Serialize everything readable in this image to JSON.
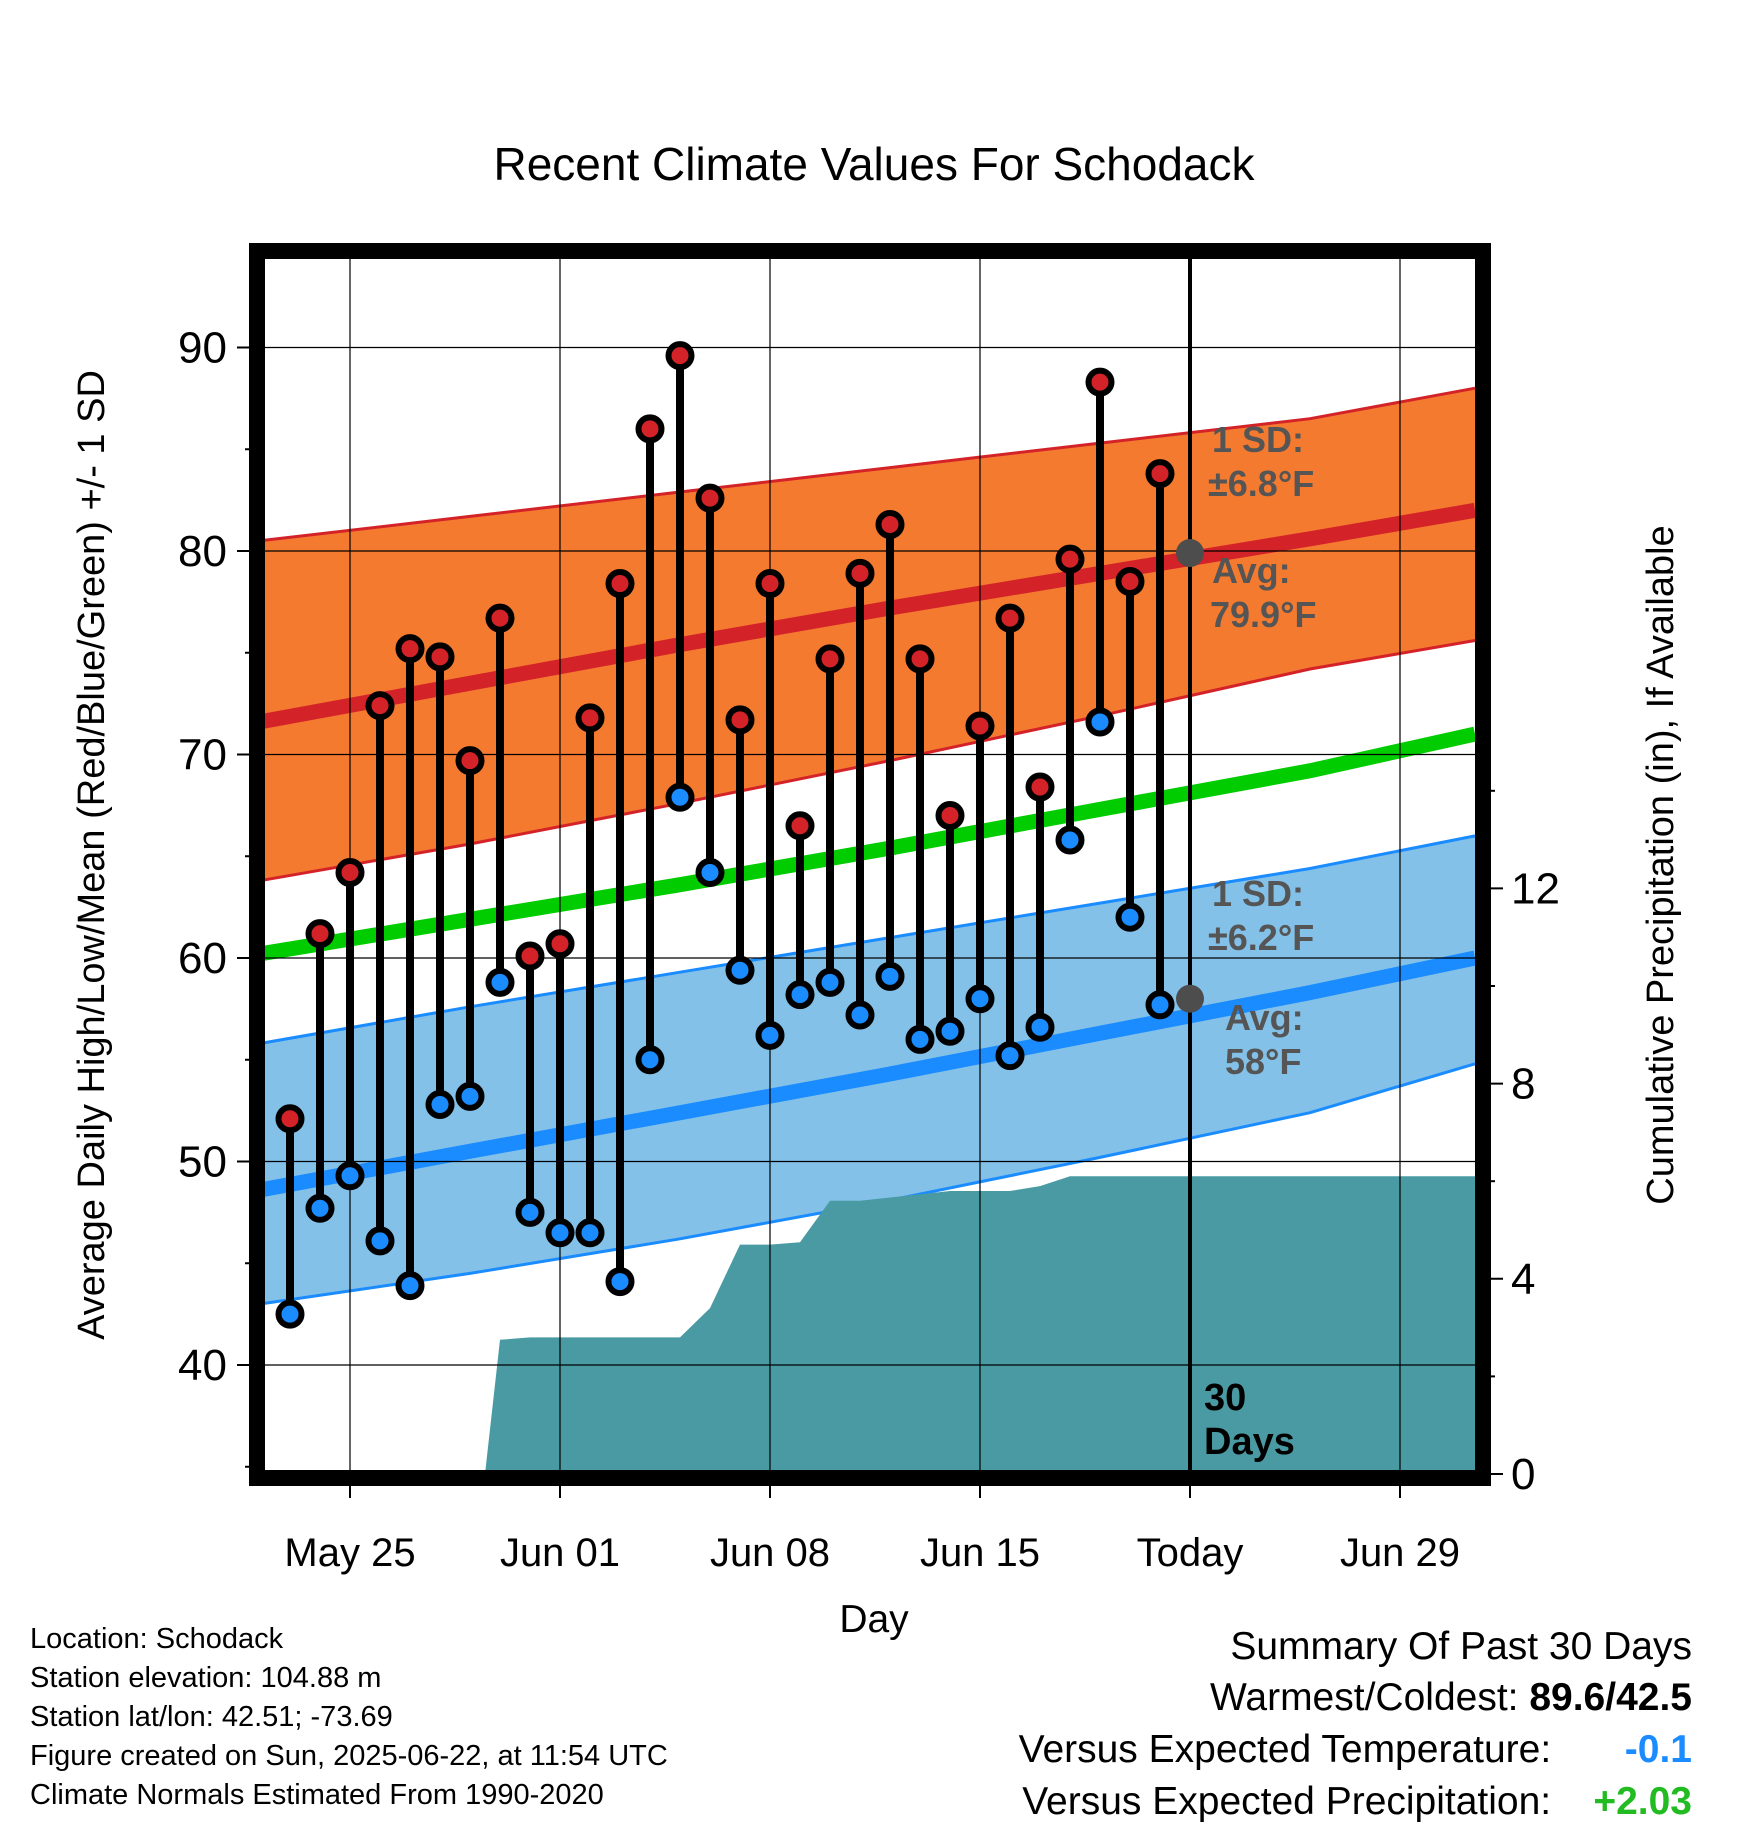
{
  "chart_data": {
    "type": "line",
    "title": "Recent Climate Values For Schodack",
    "xlabel": "Day",
    "ylabel": "Average Daily High/Low/Mean (Red/Blue/Green) +/- 1 SD",
    "y2label": "Cumulative Precipitation (in), If Available",
    "x_ticks": [
      {
        "day": 0,
        "label": "May 25"
      },
      {
        "day": 7,
        "label": "Jun 01"
      },
      {
        "day": 14,
        "label": "Jun 08"
      },
      {
        "day": 21,
        "label": "Jun 15"
      },
      {
        "day": 28,
        "label": "Today"
      },
      {
        "day": 35,
        "label": "Jun 29"
      }
    ],
    "xlim_days_from_may25": [
      -3.25,
      38.0
    ],
    "ylim": [
      34.5,
      95.0
    ],
    "y_ticks": [
      40,
      50,
      60,
      70,
      80,
      90
    ],
    "y2lim": [
      0,
      15.8
    ],
    "y2_ticks": [
      0,
      4,
      8,
      12
    ],
    "grid": true,
    "today_marker": {
      "label_line1": "30",
      "label_line2": "Days"
    },
    "days": [
      "May 23",
      "May 24",
      "May 25",
      "May 26",
      "May 27",
      "May 28",
      "May 29",
      "May 30",
      "May 31",
      "Jun 01",
      "Jun 02",
      "Jun 03",
      "Jun 04",
      "Jun 05",
      "Jun 06",
      "Jun 07",
      "Jun 08",
      "Jun 09",
      "Jun 10",
      "Jun 11",
      "Jun 12",
      "Jun 13",
      "Jun 14",
      "Jun 15",
      "Jun 16",
      "Jun 17",
      "Jun 18",
      "Jun 19",
      "Jun 20",
      "Jun 21"
    ],
    "highs": [
      52.1,
      61.2,
      64.2,
      72.4,
      75.2,
      74.8,
      69.7,
      76.7,
      60.1,
      60.7,
      71.8,
      78.4,
      86.0,
      89.6,
      82.6,
      71.7,
      78.4,
      66.5,
      74.7,
      78.9,
      81.3,
      74.7,
      67.0,
      71.4,
      76.7,
      68.4,
      79.6,
      88.3,
      78.5,
      83.8
    ],
    "lows": [
      42.5,
      47.7,
      49.3,
      46.1,
      43.9,
      52.8,
      53.2,
      58.8,
      47.5,
      46.5,
      46.5,
      44.1,
      55.0,
      67.9,
      64.2,
      59.4,
      56.2,
      58.2,
      58.8,
      57.2,
      59.1,
      56.0,
      56.4,
      58.0,
      55.2,
      56.6,
      65.8,
      71.6,
      62.0,
      57.7
    ],
    "normals": {
      "x_days": [
        -3,
        4,
        11,
        18,
        25,
        32,
        37.5
      ],
      "avg_high": [
        71.6,
        73.5,
        75.4,
        77.2,
        78.9,
        80.6,
        82.0
      ],
      "high_sd_upper": [
        80.5,
        81.7,
        82.9,
        84.1,
        85.3,
        86.5,
        88.0
      ],
      "high_sd_lower": [
        63.8,
        65.6,
        67.6,
        69.7,
        71.9,
        74.2,
        75.6
      ],
      "avg_mean": [
        60.2,
        61.9,
        63.6,
        65.4,
        67.3,
        69.2,
        71.0
      ],
      "avg_low": [
        48.6,
        50.5,
        52.4,
        54.3,
        56.3,
        58.3,
        60.0
      ],
      "low_sd_upper": [
        55.8,
        57.6,
        59.3,
        61.0,
        62.7,
        64.4,
        66.0
      ],
      "low_sd_lower": [
        43.0,
        44.5,
        46.2,
        48.1,
        50.2,
        52.4,
        54.8
      ]
    },
    "annotations": {
      "high_sd_line1": "1 SD:",
      "high_sd_line2": "±6.8",
      "high_avg_line1": "Avg:",
      "high_avg_line2": "79.9",
      "low_sd_line1": "1 SD:",
      "low_sd_line2": "±6.2",
      "low_avg_line1": "Avg:",
      "low_avg_line2": "58",
      "degree_suffix": "°F",
      "high_avg_value": 79.9,
      "low_avg_value": 58.0
    },
    "precip_cumulative": {
      "x_days": [
        -3.25,
        4.5,
        5.0,
        6.0,
        11.0,
        12.0,
        13.0,
        14.0,
        15.0,
        16.0,
        17.0,
        20.0,
        21.0,
        22.0,
        23.0,
        24.0,
        38.0
      ],
      "y": [
        0.0,
        0.0,
        2.75,
        2.8,
        2.8,
        3.4,
        4.7,
        4.7,
        4.75,
        5.6,
        5.6,
        5.8,
        5.8,
        5.8,
        5.9,
        6.1,
        6.1
      ]
    },
    "colors": {
      "high_band": "#f47a30",
      "high_line": "#d42328",
      "mean_line": "#00cc00",
      "low_band": "#83c1e8",
      "low_line": "#1a8cff",
      "precip": "#4a9aa3",
      "marker_high": "#d42328",
      "marker_low": "#1a8cff",
      "annotation_text": "#555555"
    }
  },
  "info": {
    "location": "Location: Schodack",
    "elevation": "Station elevation: 104.88 m",
    "latlon": "Station lat/lon: 42.51; -73.69",
    "created": "Figure created on Sun, 2025-06-22, at 11:54 UTC",
    "normals": "Climate Normals Estimated From 1990-2020"
  },
  "summary": {
    "title": "Summary Of Past 30 Days",
    "warm_cold_label": "Warmest/Coldest:",
    "warm_cold_value": "89.6/42.5",
    "temp_label": "Versus Expected Temperature:",
    "temp_value": "-0.1",
    "temp_color": "#1a8cff",
    "precip_label": "Versus Expected Precipitation:",
    "precip_value": "+2.03",
    "precip_color": "#22bb22"
  }
}
